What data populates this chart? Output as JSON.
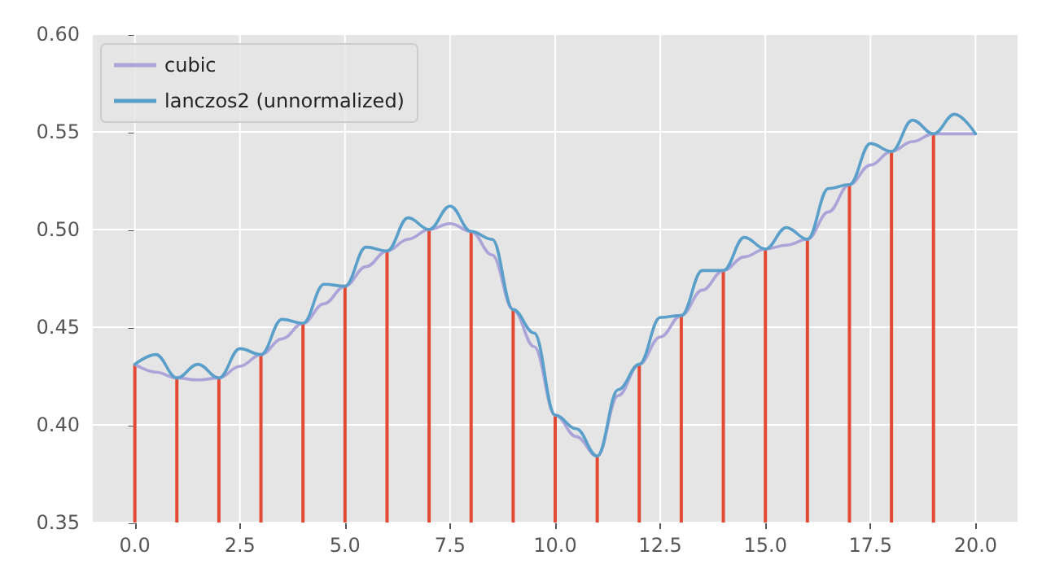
{
  "chart_data": {
    "type": "line",
    "legend": "top left",
    "grid": true,
    "line_style": "solid",
    "marker": "none",
    "xlim": [
      -1,
      21
    ],
    "xticks": [
      {
        "value": 0,
        "label": "0.0"
      },
      {
        "value": 2.5,
        "label": "2.5"
      },
      {
        "value": 5,
        "label": "5.0"
      },
      {
        "value": 7.5,
        "label": "7.5"
      },
      {
        "value": 10,
        "label": "10.0"
      },
      {
        "value": 12.5,
        "label": "12.5"
      },
      {
        "value": 15,
        "label": "15.0"
      },
      {
        "value": 17.5,
        "label": "17.5"
      },
      {
        "value": 20,
        "label": "20.0"
      }
    ],
    "ylim": [
      0.35,
      0.6
    ],
    "yticks": [
      0.35,
      {
        "value": 0.4,
        "label": "0.40"
      },
      0.45,
      {
        "value": 0.5,
        "label": "0.50"
      },
      0.55,
      {
        "value": 0.6,
        "label": "0.60"
      }
    ],
    "series": [
      {
        "type": "bar",
        "color": "#e24a33",
        "x": [
          0,
          1,
          2,
          3,
          4,
          5,
          6,
          7,
          8,
          9,
          10,
          11,
          12,
          13,
          14,
          15,
          16,
          17,
          18,
          19
        ],
        "values": [
          0.431,
          0.424,
          0.424,
          0.436,
          0.452,
          0.471,
          0.489,
          0.5,
          0.499,
          0.459,
          0.405,
          0.384,
          0.431,
          0.456,
          0.479,
          0.49,
          0.495,
          0.523,
          0.54,
          0.549
        ]
      },
      {
        "name": "cubic",
        "color": "#aba4d9",
        "x": [
          0,
          0.5,
          1,
          1.5,
          2,
          2.5,
          3,
          3.5,
          4,
          4.5,
          5,
          5.5,
          6,
          6.5,
          7,
          7.5,
          8,
          8.5,
          9,
          9.5,
          10,
          10.5,
          11,
          11.5,
          12,
          12.5,
          13,
          13.5,
          14,
          14.5,
          15,
          15.5,
          16,
          16.5,
          17,
          17.5,
          18,
          18.5,
          19,
          19.5,
          20
        ],
        "values": [
          0.431,
          0.427,
          0.424,
          0.423,
          0.424,
          0.43,
          0.436,
          0.444,
          0.452,
          0.462,
          0.471,
          0.481,
          0.489,
          0.495,
          0.5,
          0.503,
          0.499,
          0.487,
          0.459,
          0.44,
          0.405,
          0.394,
          0.384,
          0.415,
          0.431,
          0.445,
          0.456,
          0.469,
          0.479,
          0.486,
          0.49,
          0.492,
          0.495,
          0.509,
          0.523,
          0.533,
          0.54,
          0.545,
          0.549,
          0.549,
          0.549
        ]
      },
      {
        "name": "lanczos2 (unnormalized)",
        "color": "#5a9fc9",
        "x": [
          0,
          0.5,
          1,
          1.5,
          2,
          2.5,
          3,
          3.5,
          4,
          4.5,
          5,
          5.5,
          6,
          6.5,
          7,
          7.5,
          8,
          8.5,
          9,
          9.5,
          10,
          10.5,
          11,
          11.5,
          12,
          12.5,
          13,
          13.5,
          14,
          14.5,
          15,
          15.5,
          16,
          16.5,
          17,
          17.5,
          18,
          18.5,
          19,
          19.5,
          20
        ],
        "values": [
          0.431,
          0.436,
          0.424,
          0.431,
          0.424,
          0.439,
          0.436,
          0.454,
          0.452,
          0.472,
          0.471,
          0.491,
          0.489,
          0.506,
          0.5,
          0.512,
          0.499,
          0.495,
          0.459,
          0.447,
          0.405,
          0.398,
          0.384,
          0.418,
          0.431,
          0.455,
          0.456,
          0.479,
          0.479,
          0.496,
          0.49,
          0.501,
          0.495,
          0.521,
          0.523,
          0.544,
          0.54,
          0.556,
          0.549,
          0.559,
          0.549
        ]
      }
    ]
  }
}
